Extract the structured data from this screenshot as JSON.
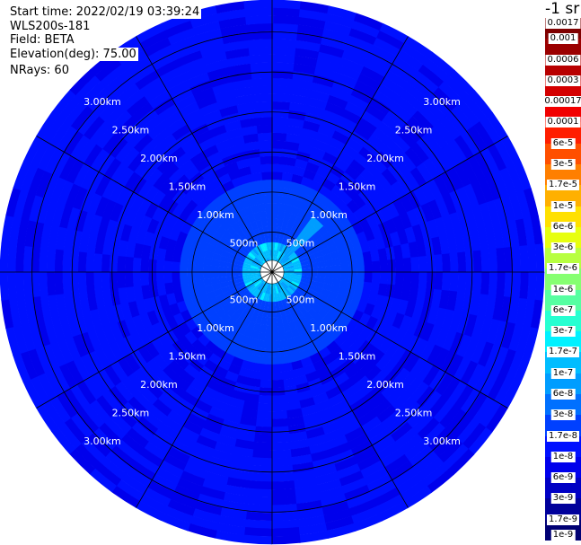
{
  "header": {
    "start_time": "Start time: 2022/02/19 03:39:24",
    "instrument": "WLS200s-181",
    "field": "Field: BETA",
    "elevation": "Elevation(deg): 75.00",
    "nrays": "NRays: 60"
  },
  "colorbar": {
    "title": "-1 sr",
    "labels": [
      "0.0017",
      "0.001",
      "0.0006",
      "0.0003",
      "0.00017",
      "0.0001",
      "6e-5",
      "3e-5",
      "1.7e-5",
      "1e-5",
      "6e-6",
      "3e-6",
      "1.7e-6",
      "1e-6",
      "6e-7",
      "3e-7",
      "1.7e-7",
      "1e-7",
      "6e-8",
      "3e-8",
      "1.7e-8",
      "1e-8",
      "6e-9",
      "3e-9",
      "1.7e-9",
      "1e-9"
    ],
    "colors": [
      "#7f0000",
      "#9b0000",
      "#b80000",
      "#d40000",
      "#f10000",
      "#ff1e00",
      "#ff4f00",
      "#ff7f00",
      "#ffb000",
      "#ffe000",
      "#e7ff10",
      "#b7ff40",
      "#86ff71",
      "#56ffa1",
      "#26ffd1",
      "#00f1ff",
      "#00bdff",
      "#009dff",
      "#0070ff",
      "#0040ff",
      "#0010ff",
      "#0000ec",
      "#0000c4",
      "#00009b",
      "#000073"
    ]
  },
  "chart_data": {
    "type": "heatmap",
    "projection": "polar-ppi",
    "field": "BETA",
    "units": "-1 sr",
    "elevation_deg": 75.0,
    "nrays": 60,
    "ranges_km": [
      0.5,
      1.0,
      1.5,
      2.0,
      2.5,
      3.0
    ],
    "range_labels": [
      "500m",
      "1.00km",
      "1.50km",
      "2.00km",
      "2.50km",
      "3.00km"
    ],
    "spokes_deg": [
      0,
      30,
      60,
      90,
      120,
      150,
      180,
      210,
      240,
      270,
      300,
      330
    ],
    "max_range_km": 3.4,
    "blank_center_km": 0.08,
    "gates_per_ray": 34,
    "rings": [
      {
        "inner_km": 0.08,
        "outer_km": 0.35,
        "value": 1.2e-07,
        "min": 6e-08,
        "max": 3e-07
      },
      {
        "inner_km": 0.35,
        "outer_km": 1.2,
        "value": 2.2e-08,
        "min": 1.7e-08,
        "max": 3e-08
      },
      {
        "inner_km": 1.2,
        "outer_km": 2.0,
        "value": 1.1e-08,
        "min": 6e-09,
        "max": 1.7e-08
      },
      {
        "inner_km": 2.0,
        "outer_km": 3.4,
        "value": 1.2e-08,
        "min": 6e-09,
        "max": 1.7e-08
      }
    ],
    "features": [
      {
        "azimuth_deg": [
          35,
          45
        ],
        "range_km": [
          0.1,
          0.9
        ],
        "value": 6e-08
      }
    ],
    "colorbar_range": [
      1e-09,
      0.0017
    ]
  }
}
